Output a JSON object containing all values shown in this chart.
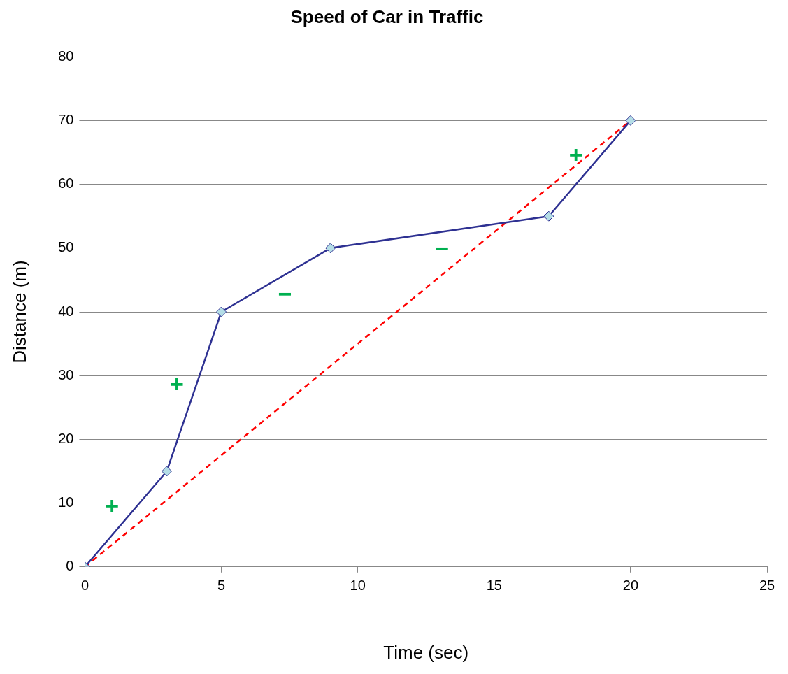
{
  "chart_data": {
    "type": "line",
    "title": "Speed of Car in Traffic",
    "xlabel": "Time (sec)",
    "ylabel": "Distance (m)",
    "series": [
      {
        "color": "#2e3192",
        "x": [
          0,
          3,
          5,
          9,
          17,
          20
        ],
        "values": [
          0,
          15,
          40,
          50,
          55,
          70
        ],
        "marker": "diamond",
        "line_style": "solid"
      },
      {
        "color": "#ff0000",
        "x": [
          0,
          20
        ],
        "values": [
          0,
          70
        ],
        "marker": "none",
        "line_style": "dashed"
      }
    ],
    "xlim": [
      0,
      25
    ],
    "xticks": [
      0,
      5,
      10,
      15,
      20,
      25
    ],
    "ylim": [
      0,
      80
    ],
    "yticks": [
      0,
      10,
      20,
      30,
      40,
      50,
      60,
      70,
      80
    ],
    "grid": "y",
    "legend": false,
    "annotations": [
      "+",
      "+",
      "−",
      "−",
      "+"
    ]
  }
}
